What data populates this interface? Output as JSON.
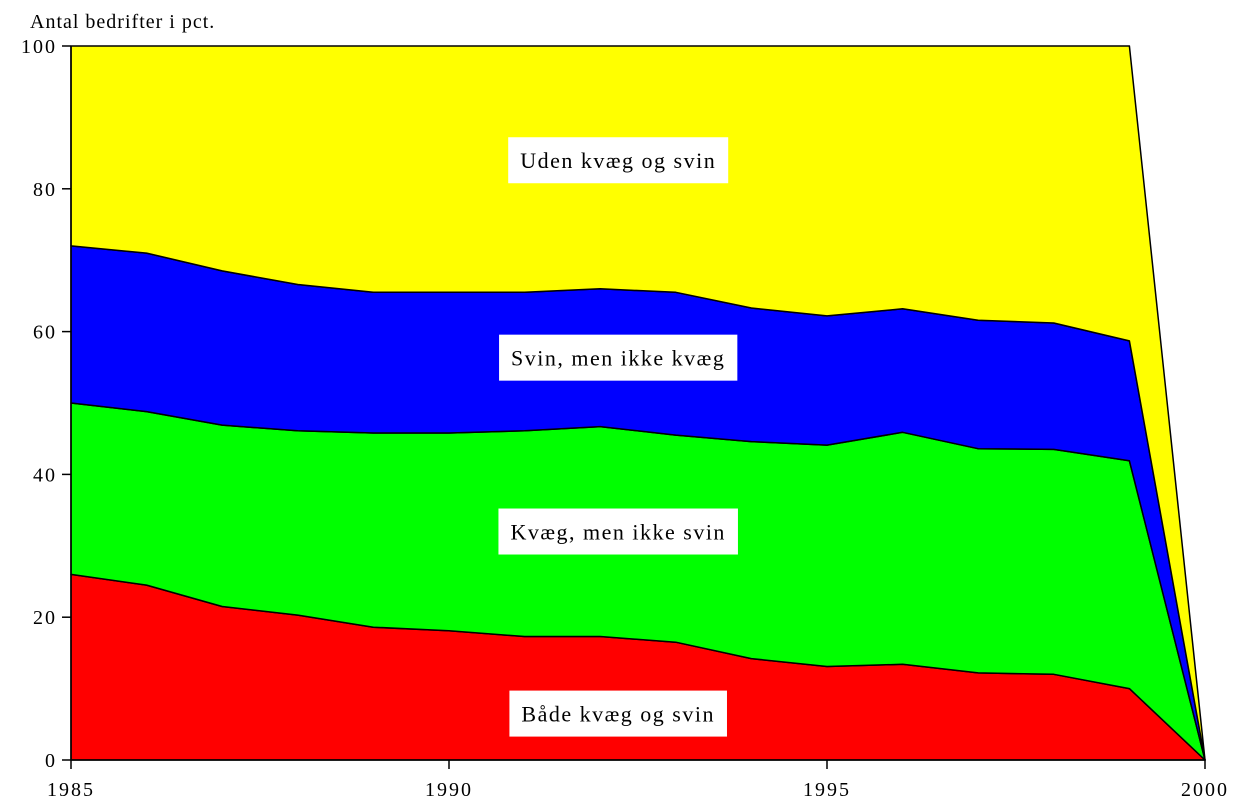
{
  "chart_data": {
    "type": "area",
    "stacked": true,
    "ylabel": "Antal bedrifter i pct.",
    "xlabel": "",
    "x": [
      1985,
      1986,
      1987,
      1988,
      1989,
      1990,
      1991,
      1992,
      1993,
      1994,
      1995,
      1996,
      1997,
      1998,
      1999,
      2000
    ],
    "xticks": [
      "1985",
      "1990",
      "1995",
      "2000"
    ],
    "yticks": [
      "0",
      "20",
      "40",
      "60",
      "80",
      "100"
    ],
    "xlim": [
      1985,
      2000
    ],
    "ylim": [
      0,
      100
    ],
    "grid": false,
    "legend": "none",
    "series": [
      {
        "name": "Både kvæg og svin",
        "color": "#ff0000",
        "values": [
          26.0,
          24.5,
          21.5,
          20.3,
          18.6,
          18.1,
          17.3,
          17.3,
          16.5,
          14.2,
          13.1,
          13.4,
          12.2,
          12.0,
          10.0,
          0
        ]
      },
      {
        "name": "Kvæg, men ikke svin",
        "color": "#00ff00",
        "values": [
          24.0,
          24.3,
          25.4,
          25.8,
          27.2,
          27.7,
          28.8,
          29.4,
          29.0,
          30.4,
          31.0,
          32.5,
          31.4,
          31.5,
          31.9,
          0
        ]
      },
      {
        "name": "Svin, men ikke kvæg",
        "color": "#0000ff",
        "values": [
          22.0,
          22.2,
          21.6,
          20.5,
          19.7,
          19.7,
          19.4,
          19.3,
          20.0,
          18.7,
          18.1,
          17.3,
          18.0,
          17.7,
          16.8,
          0
        ]
      },
      {
        "name": "Uden kvæg og svin",
        "color": "#ffff00",
        "values": [
          28.0,
          29.0,
          31.5,
          33.4,
          34.5,
          34.5,
          34.5,
          34.0,
          34.5,
          36.7,
          37.8,
          36.8,
          38.4,
          38.8,
          41.3,
          0
        ]
      }
    ],
    "labels": [
      {
        "series": 3,
        "text": "Uden kvæg og svin"
      },
      {
        "series": 2,
        "text": "Svin, men ikke kvæg"
      },
      {
        "series": 1,
        "text": "Kvæg, men ikke svin"
      },
      {
        "series": 0,
        "text": "Både kvæg og svin"
      }
    ]
  }
}
